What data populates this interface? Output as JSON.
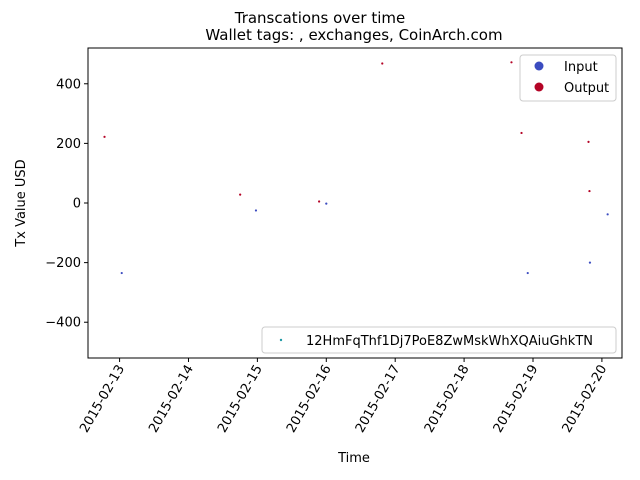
{
  "chart_data": {
    "type": "scatter",
    "title": "Transcations over time",
    "subtitle": "Wallet tags: , exchanges, CoinArch.com",
    "xlabel": "Time",
    "ylabel": "Tx Value USD",
    "xlim": [
      "2015-02-12 13:00",
      "2015-02-20 07:00"
    ],
    "ylim": [
      -520,
      520
    ],
    "x_ticks": [
      "2015-02-13",
      "2015-02-14",
      "2015-02-15",
      "2015-02-16",
      "2015-02-17",
      "2015-02-18",
      "2015-02-19",
      "2015-02-20"
    ],
    "y_ticks": [
      -400,
      -200,
      0,
      200,
      400
    ],
    "grid": false,
    "legend_position": "top-right",
    "series": [
      {
        "name": "Input",
        "color": "#3b4cc0",
        "points": [
          {
            "x": "2015-02-13 00:45",
            "y": -235
          },
          {
            "x": "2015-02-14 23:30",
            "y": -25
          },
          {
            "x": "2015-02-16 00:00",
            "y": -2
          },
          {
            "x": "2015-02-18 22:10",
            "y": -235
          },
          {
            "x": "2015-02-19 19:50",
            "y": -200
          },
          {
            "x": "2015-02-20 02:00",
            "y": -38
          }
        ]
      },
      {
        "name": "Output",
        "color": "#b40426",
        "points": [
          {
            "x": "2015-02-12 18:45",
            "y": 222
          },
          {
            "x": "2015-02-14 18:00",
            "y": 28
          },
          {
            "x": "2015-02-15 21:30",
            "y": 5
          },
          {
            "x": "2015-02-16 19:30",
            "y": 468
          },
          {
            "x": "2015-02-18 16:30",
            "y": 472
          },
          {
            "x": "2015-02-18 20:00",
            "y": 235
          },
          {
            "x": "2015-02-19 19:20",
            "y": 205
          },
          {
            "x": "2015-02-19 19:40",
            "y": 40
          }
        ]
      }
    ],
    "second_legend": {
      "label": "12HmFqThf1Dj7PoE8ZwMskWhXQAiuGhkTN",
      "color": "#1f9aa6",
      "position": "bottom-right"
    }
  }
}
